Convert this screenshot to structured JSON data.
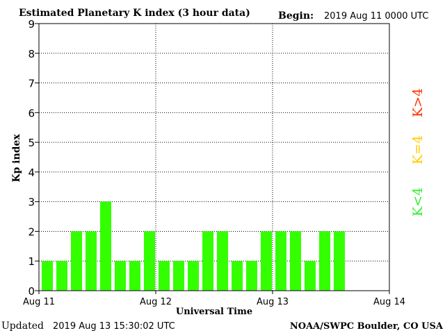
{
  "header": {
    "title": "Estimated Planetary K index (3 hour data)",
    "begin_label": "Begin:",
    "begin_value": "2019 Aug 11 0000 UTC"
  },
  "footer": {
    "updated_label": "Updated",
    "updated_value": "2019 Aug 13 15:30:02 UTC",
    "credit": "NOAA/SWPC Boulder, CO USA"
  },
  "legend": {
    "items": [
      {
        "label": "K<4",
        "color": "#33ee33"
      },
      {
        "label": "K=4",
        "color": "#ffcc00"
      },
      {
        "label": "K>4",
        "color": "#ff3300"
      }
    ]
  },
  "chart_data": {
    "type": "bar",
    "title": "Estimated Planetary K index (3 hour data)",
    "xlabel": "Universal Time",
    "ylabel": "Kp index",
    "ylim": [
      0,
      9
    ],
    "yticks": [
      0,
      1,
      2,
      3,
      4,
      5,
      6,
      7,
      8,
      9
    ],
    "xlim_slots": 24,
    "x_tick_labels": [
      "Aug 11",
      "Aug 12",
      "Aug 13",
      "Aug 14"
    ],
    "bar_color": "#33ff00",
    "grid": "dotted",
    "values": [
      1,
      1,
      2,
      2,
      3,
      1,
      1,
      2,
      1,
      1,
      1,
      2,
      2,
      1,
      1,
      2,
      2,
      2,
      1,
      2,
      2
    ]
  }
}
